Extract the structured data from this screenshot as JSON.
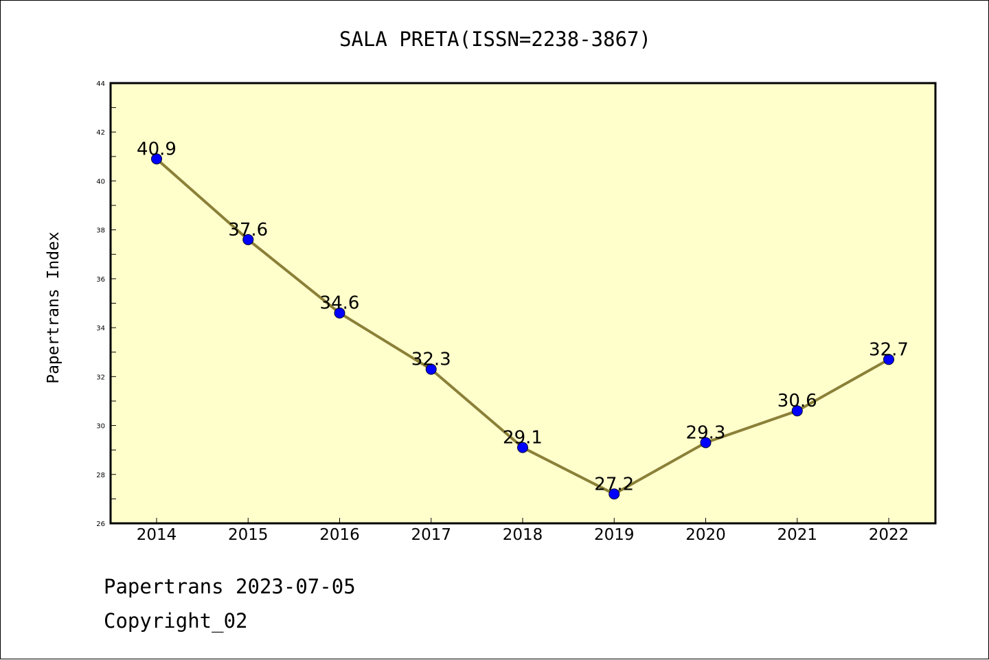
{
  "chart_data": {
    "type": "line",
    "title": "SALA PRETA(ISSN=2238-3867)",
    "xlabel": "",
    "ylabel": "Papertrans Index",
    "categories": [
      "2014",
      "2015",
      "2016",
      "2017",
      "2018",
      "2019",
      "2020",
      "2021",
      "2022"
    ],
    "values": [
      40.9,
      37.6,
      34.6,
      32.3,
      29.1,
      27.2,
      29.3,
      30.6,
      32.7
    ],
    "data_labels": [
      "40.9",
      "37.6",
      "34.6",
      "32.3",
      "29.1",
      "27.2",
      "29.3",
      "30.6",
      "32.7"
    ],
    "ylim": [
      26,
      44
    ],
    "yticks": [
      "26",
      "28",
      "30",
      "32",
      "34",
      "36",
      "38",
      "40",
      "42",
      "44"
    ],
    "grid": false,
    "legend": "none",
    "colors": {
      "plot_background": "#ffffcc",
      "line": "#8b8038",
      "marker": "#0000ff",
      "axis": "#000000"
    }
  },
  "footer": {
    "date_line": "Papertrans 2023-07-05",
    "copyright_line": "Copyright_02"
  }
}
